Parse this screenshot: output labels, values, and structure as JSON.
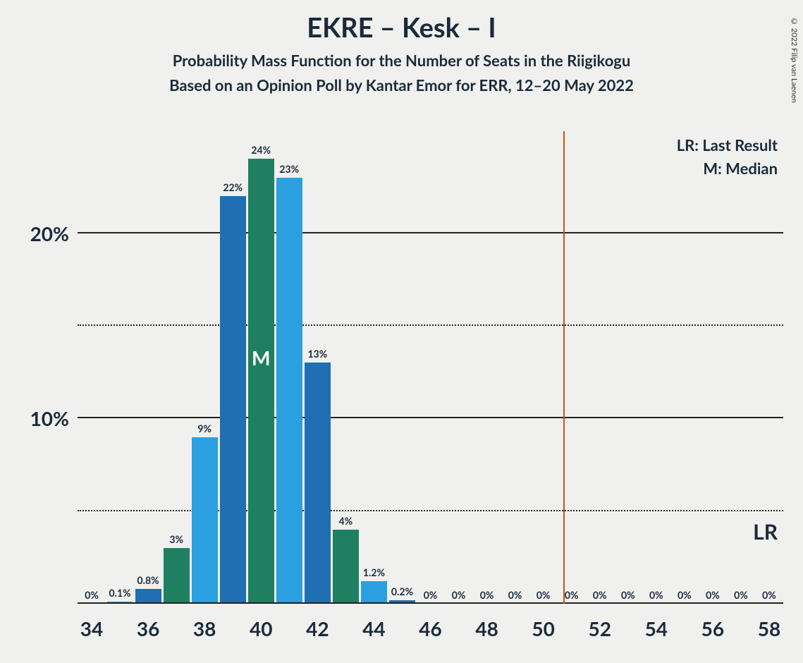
{
  "copyright": "© 2022 Filip van Laenen",
  "title": {
    "text": "EKRE – Kesk – I",
    "fontsize": 38
  },
  "subtitle": {
    "text": "Probability Mass Function for the Number of Seats in the Riigikogu",
    "fontsize": 22
  },
  "subtitle2": {
    "text": "Based on an Opinion Poll by Kantar Emor for ERR, 12–20 May 2022",
    "fontsize": 22
  },
  "legend": {
    "lr": "LR: Last Result",
    "m": "M: Median",
    "fontsize": 22
  },
  "lr_marker_label": "LR",
  "median_marker_label": "M",
  "chart": {
    "type": "bar",
    "background_color": "#f0f0ee",
    "text_color": "#1a2a3a",
    "grid_solid_color": "#222222",
    "grid_dotted_color": "#222222",
    "axis_color": "#222222",
    "lr_line_color": "#cc5500",
    "bar_colors": {
      "blue_dark": "#1f6fb2",
      "blue_light": "#2aa0e0",
      "green": "#1e8060"
    },
    "y": {
      "max_percent": 25.5,
      "ticks": [
        {
          "value": 10,
          "label": "10%"
        },
        {
          "value": 20,
          "label": "20%"
        }
      ],
      "minor_ticks": [
        5,
        15
      ],
      "label_fontsize": 28
    },
    "x": {
      "min": 34,
      "max": 58,
      "tick_step": 2,
      "labels": [
        "34",
        "36",
        "38",
        "40",
        "42",
        "44",
        "46",
        "48",
        "50",
        "52",
        "54",
        "56",
        "58"
      ],
      "label_fontsize": 28
    },
    "lr_position_seats": 50.7,
    "median_seats": 40,
    "bar_width_ratio": 0.92,
    "bar_label_fontsize": 14,
    "median_mark_fontsize": 28,
    "lr_label_fontsize": 30,
    "bars": [
      {
        "seat": 34,
        "value": 0,
        "label": "0%",
        "color": "blue_dark"
      },
      {
        "seat": 35,
        "value": 0.1,
        "label": "0.1%",
        "color": "blue_light"
      },
      {
        "seat": 36,
        "value": 0.8,
        "label": "0.8%",
        "color": "blue_dark"
      },
      {
        "seat": 37,
        "value": 3,
        "label": "3%",
        "color": "green"
      },
      {
        "seat": 38,
        "value": 9,
        "label": "9%",
        "color": "blue_light"
      },
      {
        "seat": 39,
        "value": 22,
        "label": "22%",
        "color": "blue_dark"
      },
      {
        "seat": 40,
        "value": 24,
        "label": "24%",
        "color": "green"
      },
      {
        "seat": 41,
        "value": 23,
        "label": "23%",
        "color": "blue_light"
      },
      {
        "seat": 42,
        "value": 13,
        "label": "13%",
        "color": "blue_dark"
      },
      {
        "seat": 43,
        "value": 4,
        "label": "4%",
        "color": "green"
      },
      {
        "seat": 44,
        "value": 1.2,
        "label": "1.2%",
        "color": "blue_light"
      },
      {
        "seat": 45,
        "value": 0.2,
        "label": "0.2%",
        "color": "blue_dark"
      },
      {
        "seat": 46,
        "value": 0,
        "label": "0%",
        "color": "blue_dark"
      },
      {
        "seat": 47,
        "value": 0,
        "label": "0%",
        "color": "blue_dark"
      },
      {
        "seat": 48,
        "value": 0,
        "label": "0%",
        "color": "blue_dark"
      },
      {
        "seat": 49,
        "value": 0,
        "label": "0%",
        "color": "blue_dark"
      },
      {
        "seat": 50,
        "value": 0,
        "label": "0%",
        "color": "blue_dark"
      },
      {
        "seat": 51,
        "value": 0,
        "label": "0%",
        "color": "blue_dark"
      },
      {
        "seat": 52,
        "value": 0,
        "label": "0%",
        "color": "blue_dark"
      },
      {
        "seat": 53,
        "value": 0,
        "label": "0%",
        "color": "blue_dark"
      },
      {
        "seat": 54,
        "value": 0,
        "label": "0%",
        "color": "blue_dark"
      },
      {
        "seat": 55,
        "value": 0,
        "label": "0%",
        "color": "blue_dark"
      },
      {
        "seat": 56,
        "value": 0,
        "label": "0%",
        "color": "blue_dark"
      },
      {
        "seat": 57,
        "value": 0,
        "label": "0%",
        "color": "blue_dark"
      },
      {
        "seat": 58,
        "value": 0,
        "label": "0%",
        "color": "blue_dark"
      }
    ]
  }
}
